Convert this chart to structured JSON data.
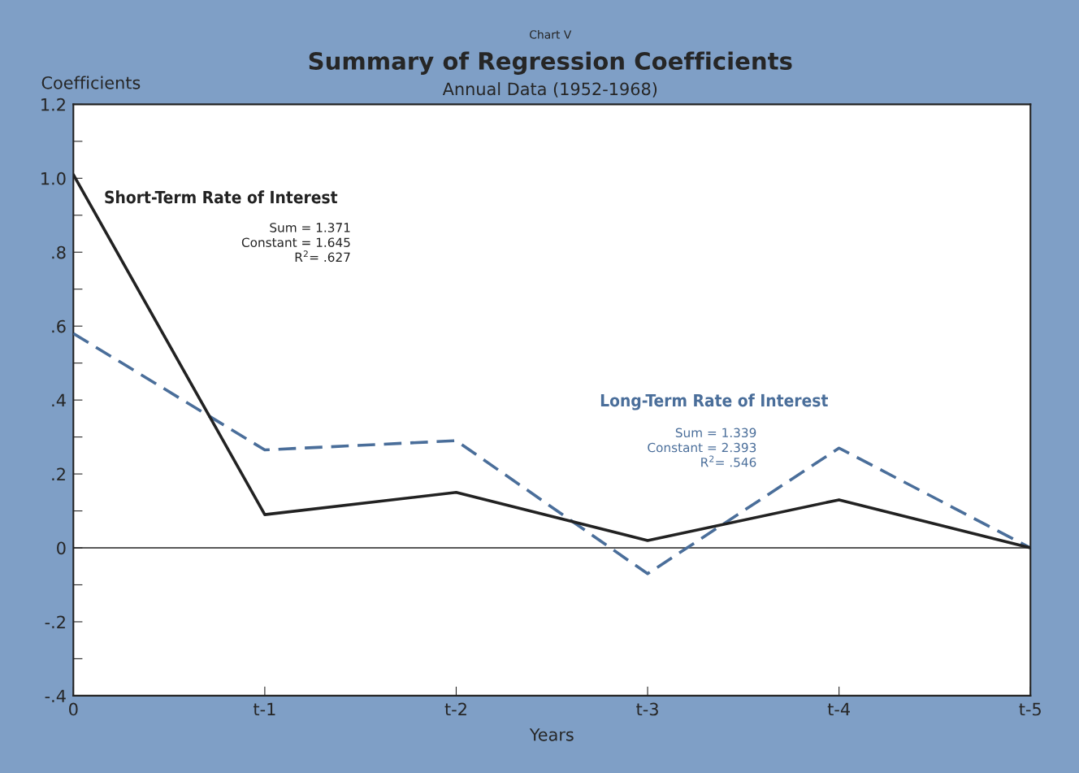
{
  "chart_data": {
    "type": "line",
    "title": "Summary of Regression Coefficients",
    "subtitle": "Annual Data (1952-1968)",
    "xlabel": "Years",
    "ylabel": "Coefficients",
    "categories": [
      "0",
      "t-1",
      "t-2",
      "t-3",
      "t-4",
      "t-5"
    ],
    "series": [
      {
        "name": "Short-Term Rate of Interest",
        "color": "#222222",
        "line_style": "solid",
        "values": [
          1.01,
          0.09,
          0.15,
          0.02,
          0.13,
          0
        ]
      },
      {
        "name": "Long-Term Rate of Interest",
        "color": "#4a6e9a",
        "line_style": "dashed",
        "values": [
          0.58,
          0.265,
          0.29,
          -0.07,
          0.27,
          0
        ]
      }
    ],
    "ylim": [
      -0.4,
      1.2
    ],
    "yticks": [
      {
        "value": -0.4,
        "label": "-.4"
      },
      {
        "value": -0.3,
        "label": null
      },
      {
        "value": -0.2,
        "label": "-.2"
      },
      {
        "value": -0.1,
        "label": null
      },
      {
        "value": 0,
        "label": "0"
      },
      {
        "value": 0.1,
        "label": null
      },
      {
        "value": 0.2,
        "label": ".2"
      },
      {
        "value": 0.3,
        "label": null
      },
      {
        "value": 0.4,
        "label": ".4"
      },
      {
        "value": 0.5,
        "label": null
      },
      {
        "value": 0.6,
        "label": ".6"
      },
      {
        "value": 0.7,
        "label": null
      },
      {
        "value": 0.8,
        "label": ".8"
      },
      {
        "value": 0.9,
        "label": null
      },
      {
        "value": 1.0,
        "label": "1.0"
      },
      {
        "value": 1.1,
        "label": null
      },
      {
        "value": 1.2,
        "label": "1.2"
      }
    ],
    "ref_lines": [
      {
        "axis": "y",
        "value": 0,
        "color": "#222222",
        "line_style": "solid"
      }
    ],
    "annotations": [
      "Chart V",
      "Sum = 1.371\nConstant = 1.645\nR$^{2}$= .627",
      "Sum = 1.339\nConstant = 2.393\nR$^{2}$= .546"
    ],
    "grid": false,
    "legend": false,
    "marker": "none"
  }
}
